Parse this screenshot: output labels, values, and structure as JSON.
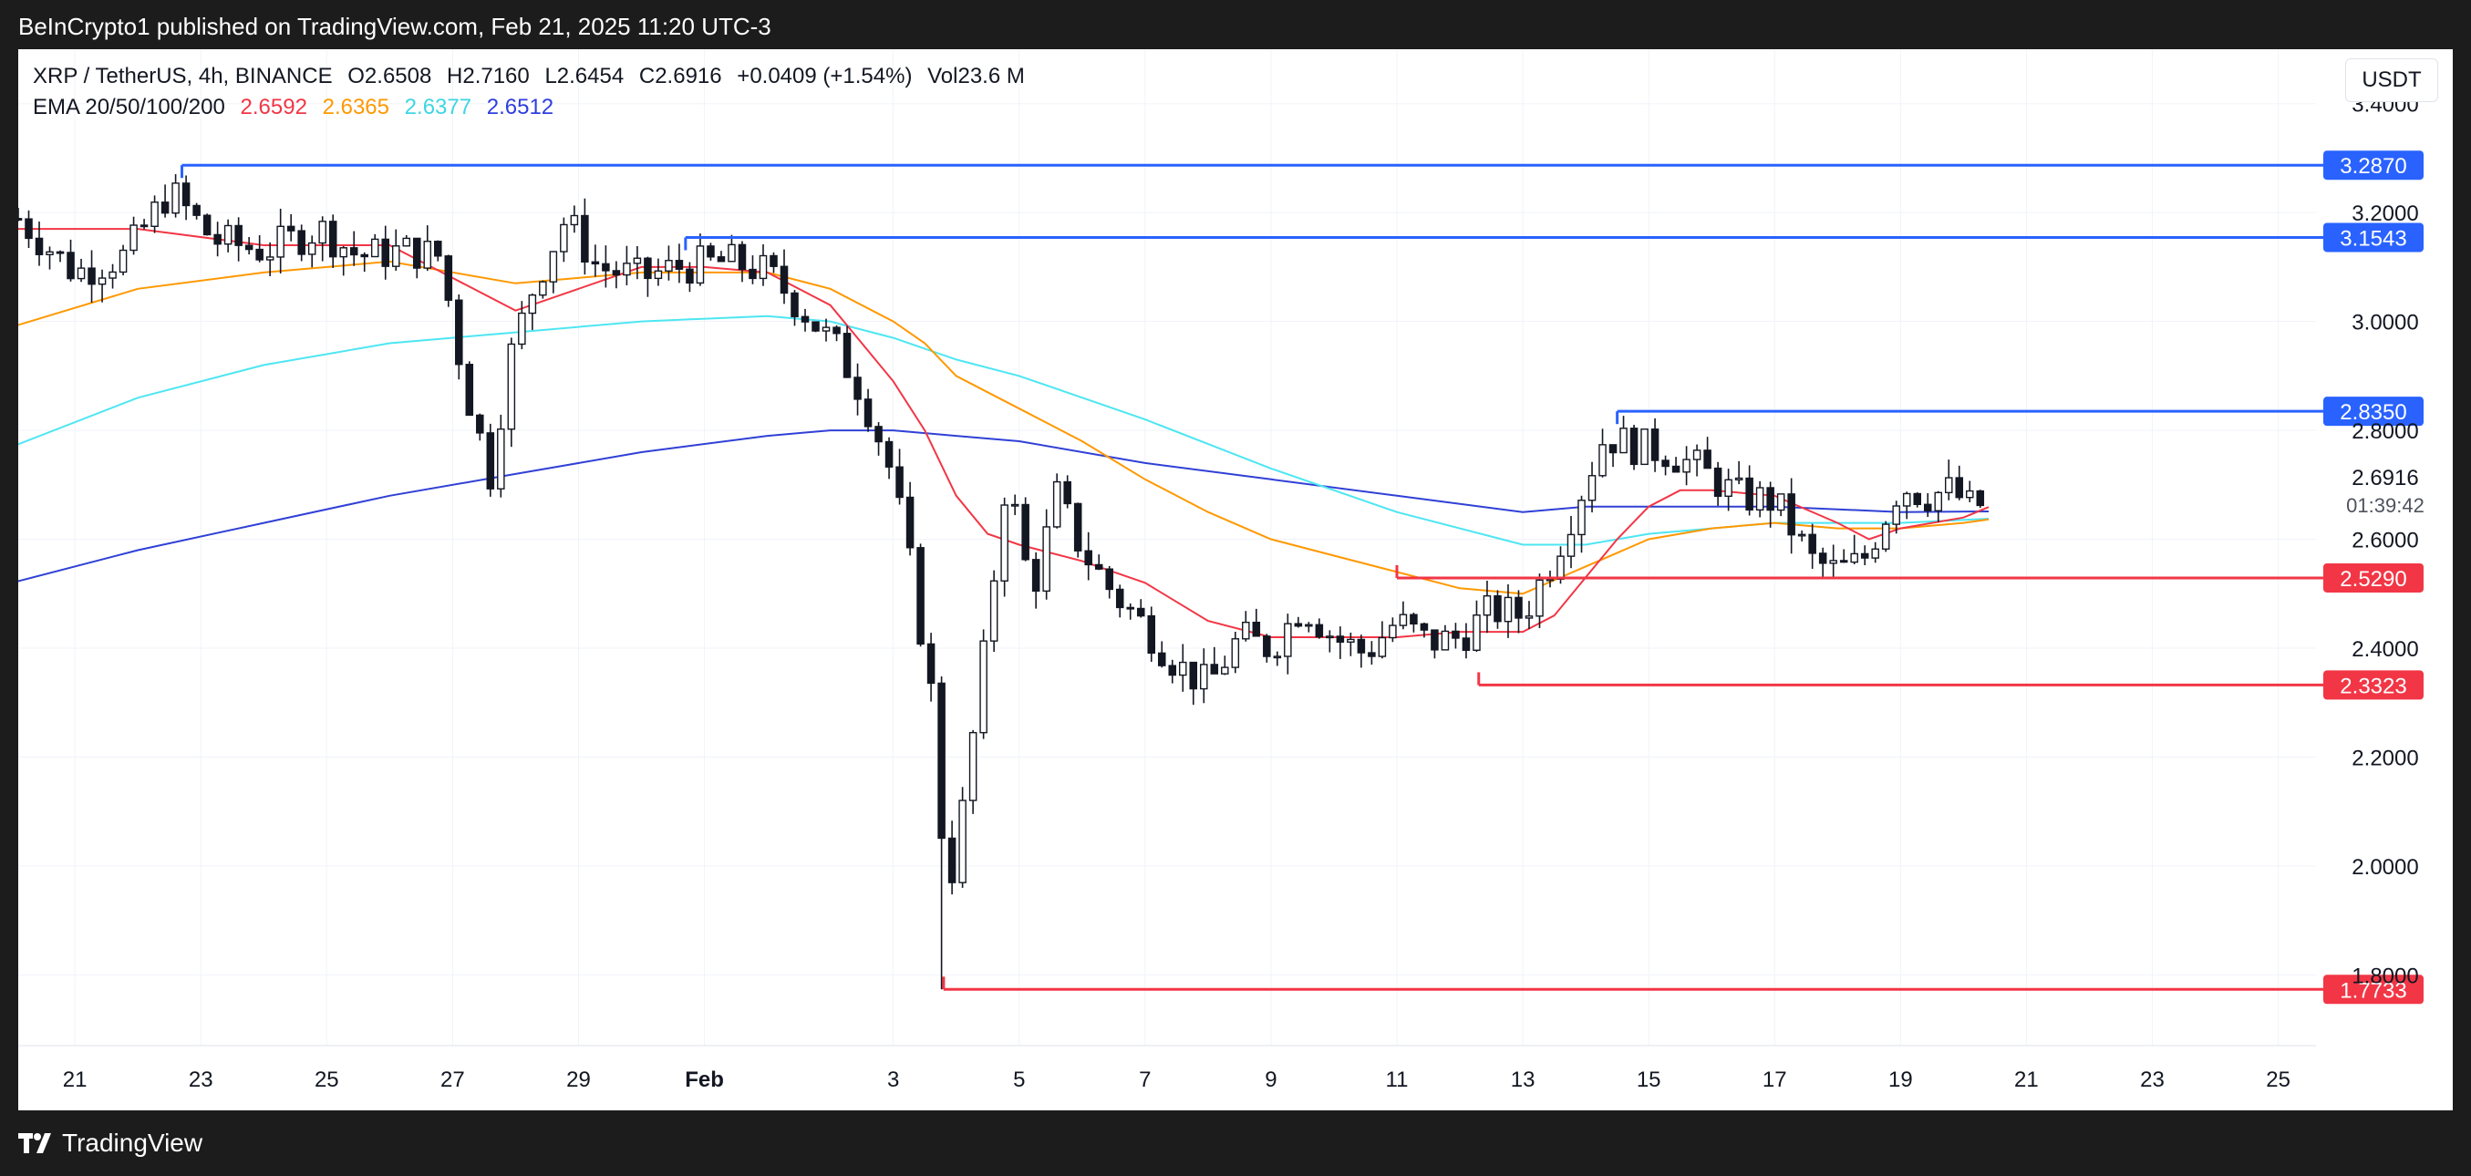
{
  "header": {
    "publisher": "BeInCrypto1 published on TradingView.com, Feb 21, 2025 11:20 UTC-3"
  },
  "legend": {
    "symbol": "XRP / TetherUS, 4h, BINANCE",
    "open": "O2.6508",
    "high": "H2.7160",
    "low": "L2.6454",
    "close": "C2.6916",
    "change": "+0.0409 (+1.54%)",
    "volume": "Vol23.6 M",
    "ema_label": "EMA 20/50/100/200",
    "ema_values": [
      "2.6592",
      "2.6365",
      "2.6377",
      "2.6512"
    ]
  },
  "currency": "USDT",
  "price_label": {
    "value": "2.6916",
    "countdown": "01:39:42"
  },
  "footer": {
    "brand": "TradingView"
  },
  "colors": {
    "up": "#ffffff",
    "down": "#131722",
    "ema20": "#f23645",
    "ema50": "#ff9800",
    "ema100": "#4ee6f2",
    "ema200": "#3040d6",
    "resistance": "#2962ff",
    "support": "#f23645",
    "grid": "#f0f3fa",
    "text": "#131722"
  },
  "chart_data": {
    "type": "candlestick",
    "y_axis": {
      "ticks": [
        "3.4000",
        "3.2000",
        "3.0000",
        "2.8000",
        "2.6000",
        "2.4000",
        "2.2000",
        "2.0000",
        "1.8000"
      ],
      "range": [
        1.67,
        3.5
      ]
    },
    "x_axis": {
      "ticks": [
        "21",
        "23",
        "25",
        "27",
        "29",
        "Feb",
        "3",
        "5",
        "7",
        "9",
        "11",
        "13",
        "15",
        "17",
        "19",
        "21",
        "23",
        "25"
      ],
      "range": [
        20.1,
        56.6
      ]
    },
    "levels": [
      {
        "value": 3.287,
        "label": "3.2870",
        "kind": "resistance",
        "start_day": 22.7
      },
      {
        "value": 3.1543,
        "label": "3.1543",
        "kind": "resistance",
        "start_day": 30.7
      },
      {
        "value": 2.835,
        "label": "2.8350",
        "kind": "resistance",
        "start_day": 45.5
      },
      {
        "value": 2.529,
        "label": "2.5290",
        "kind": "support",
        "start_day": 42.0
      },
      {
        "value": 2.3323,
        "label": "2.3323",
        "kind": "support",
        "start_day": 43.3
      },
      {
        "value": 1.7733,
        "label": "1.7733",
        "kind": "support",
        "start_day": 34.8
      }
    ],
    "closes": [
      [
        20.0,
        3.2
      ],
      [
        21.0,
        3.09
      ],
      [
        21.8,
        3.12
      ],
      [
        22.5,
        3.24
      ],
      [
        23.2,
        3.15
      ],
      [
        24.0,
        3.13
      ],
      [
        24.9,
        3.17
      ],
      [
        25.5,
        3.12
      ],
      [
        26.3,
        3.13
      ],
      [
        26.8,
        3.12
      ],
      [
        27.2,
        2.88
      ],
      [
        27.6,
        2.72
      ],
      [
        27.9,
        2.93
      ],
      [
        28.3,
        3.07
      ],
      [
        28.8,
        3.19
      ],
      [
        29.3,
        3.1
      ],
      [
        30.0,
        3.08
      ],
      [
        30.6,
        3.1
      ],
      [
        31.4,
        3.11
      ],
      [
        32.0,
        3.09
      ],
      [
        32.5,
        3.03
      ],
      [
        33.1,
        2.95
      ],
      [
        33.5,
        2.87
      ],
      [
        33.9,
        2.75
      ],
      [
        34.2,
        2.6
      ],
      [
        34.6,
        2.32
      ],
      [
        34.85,
        1.94
      ],
      [
        35.1,
        2.1
      ],
      [
        35.4,
        2.35
      ],
      [
        35.8,
        2.72
      ],
      [
        36.2,
        2.5
      ],
      [
        36.6,
        2.68
      ],
      [
        37.0,
        2.58
      ],
      [
        37.5,
        2.5
      ],
      [
        38.0,
        2.44
      ],
      [
        38.5,
        2.37
      ],
      [
        39.0,
        2.33
      ],
      [
        39.5,
        2.42
      ],
      [
        40.0,
        2.4
      ],
      [
        40.5,
        2.48
      ],
      [
        41.0,
        2.42
      ],
      [
        41.5,
        2.39
      ],
      [
        42.0,
        2.45
      ],
      [
        42.5,
        2.41
      ],
      [
        43.0,
        2.42
      ],
      [
        43.5,
        2.47
      ],
      [
        44.0,
        2.46
      ],
      [
        44.5,
        2.57
      ],
      [
        44.9,
        2.68
      ],
      [
        45.3,
        2.79
      ],
      [
        45.8,
        2.77
      ],
      [
        46.3,
        2.76
      ],
      [
        46.8,
        2.73
      ],
      [
        47.4,
        2.68
      ],
      [
        48.0,
        2.67
      ],
      [
        48.6,
        2.56
      ],
      [
        49.0,
        2.54
      ],
      [
        49.4,
        2.56
      ],
      [
        49.7,
        2.63
      ],
      [
        50.0,
        2.7
      ],
      [
        50.4,
        2.68
      ],
      [
        50.8,
        2.69
      ],
      [
        51.2,
        2.65
      ],
      [
        51.4,
        2.69
      ]
    ],
    "ema20": [
      [
        20.0,
        3.17
      ],
      [
        22.0,
        3.17
      ],
      [
        24.0,
        3.14
      ],
      [
        26.0,
        3.14
      ],
      [
        27.0,
        3.08
      ],
      [
        28.0,
        3.02
      ],
      [
        29.0,
        3.06
      ],
      [
        30.0,
        3.1
      ],
      [
        31.0,
        3.1
      ],
      [
        32.0,
        3.09
      ],
      [
        33.0,
        3.03
      ],
      [
        33.5,
        2.96
      ],
      [
        34.0,
        2.89
      ],
      [
        34.5,
        2.8
      ],
      [
        35.0,
        2.68
      ],
      [
        35.5,
        2.61
      ],
      [
        36.0,
        2.59
      ],
      [
        37.0,
        2.56
      ],
      [
        38.0,
        2.52
      ],
      [
        39.0,
        2.45
      ],
      [
        40.0,
        2.42
      ],
      [
        41.0,
        2.42
      ],
      [
        42.0,
        2.42
      ],
      [
        43.0,
        2.43
      ],
      [
        44.0,
        2.43
      ],
      [
        44.5,
        2.46
      ],
      [
        45.0,
        2.53
      ],
      [
        45.5,
        2.6
      ],
      [
        46.0,
        2.66
      ],
      [
        46.5,
        2.69
      ],
      [
        47.0,
        2.69
      ],
      [
        48.0,
        2.68
      ],
      [
        49.0,
        2.63
      ],
      [
        49.5,
        2.6
      ],
      [
        50.0,
        2.62
      ],
      [
        51.0,
        2.64
      ],
      [
        51.4,
        2.6592
      ]
    ],
    "ema50": [
      [
        20.0,
        2.99
      ],
      [
        22.0,
        3.06
      ],
      [
        24.0,
        3.09
      ],
      [
        26.0,
        3.11
      ],
      [
        28.0,
        3.07
      ],
      [
        30.0,
        3.09
      ],
      [
        32.0,
        3.09
      ],
      [
        33.0,
        3.06
      ],
      [
        34.0,
        3.0
      ],
      [
        34.5,
        2.96
      ],
      [
        35.0,
        2.9
      ],
      [
        36.0,
        2.84
      ],
      [
        37.0,
        2.78
      ],
      [
        38.0,
        2.71
      ],
      [
        39.0,
        2.65
      ],
      [
        40.0,
        2.6
      ],
      [
        41.0,
        2.57
      ],
      [
        42.0,
        2.54
      ],
      [
        43.0,
        2.51
      ],
      [
        44.0,
        2.5
      ],
      [
        45.0,
        2.55
      ],
      [
        46.0,
        2.6
      ],
      [
        47.0,
        2.62
      ],
      [
        48.0,
        2.63
      ],
      [
        49.0,
        2.62
      ],
      [
        50.0,
        2.62
      ],
      [
        51.0,
        2.63
      ],
      [
        51.4,
        2.6365
      ]
    ],
    "ema100": [
      [
        20.0,
        2.77
      ],
      [
        22.0,
        2.86
      ],
      [
        24.0,
        2.92
      ],
      [
        26.0,
        2.96
      ],
      [
        28.0,
        2.98
      ],
      [
        30.0,
        3.0
      ],
      [
        32.0,
        3.01
      ],
      [
        33.0,
        3.0
      ],
      [
        34.0,
        2.97
      ],
      [
        35.0,
        2.93
      ],
      [
        36.0,
        2.9
      ],
      [
        38.0,
        2.82
      ],
      [
        40.0,
        2.73
      ],
      [
        42.0,
        2.65
      ],
      [
        44.0,
        2.59
      ],
      [
        45.0,
        2.59
      ],
      [
        46.0,
        2.61
      ],
      [
        48.0,
        2.63
      ],
      [
        50.0,
        2.63
      ],
      [
        51.4,
        2.6377
      ]
    ],
    "ema200": [
      [
        20.0,
        2.52
      ],
      [
        22.0,
        2.58
      ],
      [
        24.0,
        2.63
      ],
      [
        26.0,
        2.68
      ],
      [
        28.0,
        2.72
      ],
      [
        30.0,
        2.76
      ],
      [
        32.0,
        2.79
      ],
      [
        33.0,
        2.8
      ],
      [
        34.0,
        2.8
      ],
      [
        35.0,
        2.79
      ],
      [
        36.0,
        2.78
      ],
      [
        38.0,
        2.74
      ],
      [
        40.0,
        2.71
      ],
      [
        42.0,
        2.68
      ],
      [
        44.0,
        2.65
      ],
      [
        45.0,
        2.66
      ],
      [
        46.0,
        2.66
      ],
      [
        48.0,
        2.66
      ],
      [
        50.0,
        2.65
      ],
      [
        51.4,
        2.6512
      ]
    ]
  }
}
